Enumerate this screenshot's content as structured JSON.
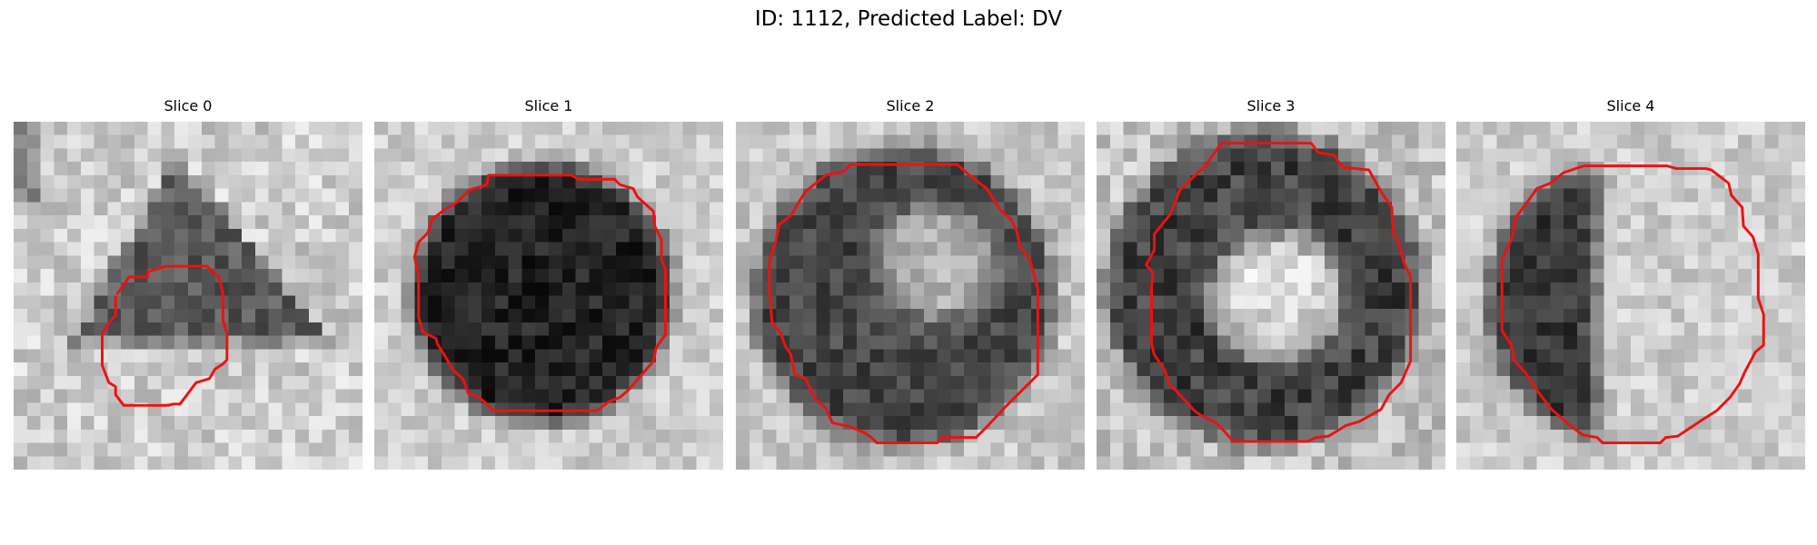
{
  "figure": {
    "title": "ID: 1112, Predicted Label: DV"
  },
  "panels": [
    {
      "title": "Slice 0",
      "pattern": "triangle-dark-region"
    },
    {
      "title": "Slice 1",
      "pattern": "dark-disk"
    },
    {
      "title": "Slice 2",
      "pattern": "dark-ring-light-center"
    },
    {
      "title": "Slice 3",
      "pattern": "dark-ring-bright-center"
    },
    {
      "title": "Slice 4",
      "pattern": "dark-left-half-disk"
    }
  ],
  "colors": {
    "contour": "#ee1111",
    "background": "#ffffff"
  }
}
